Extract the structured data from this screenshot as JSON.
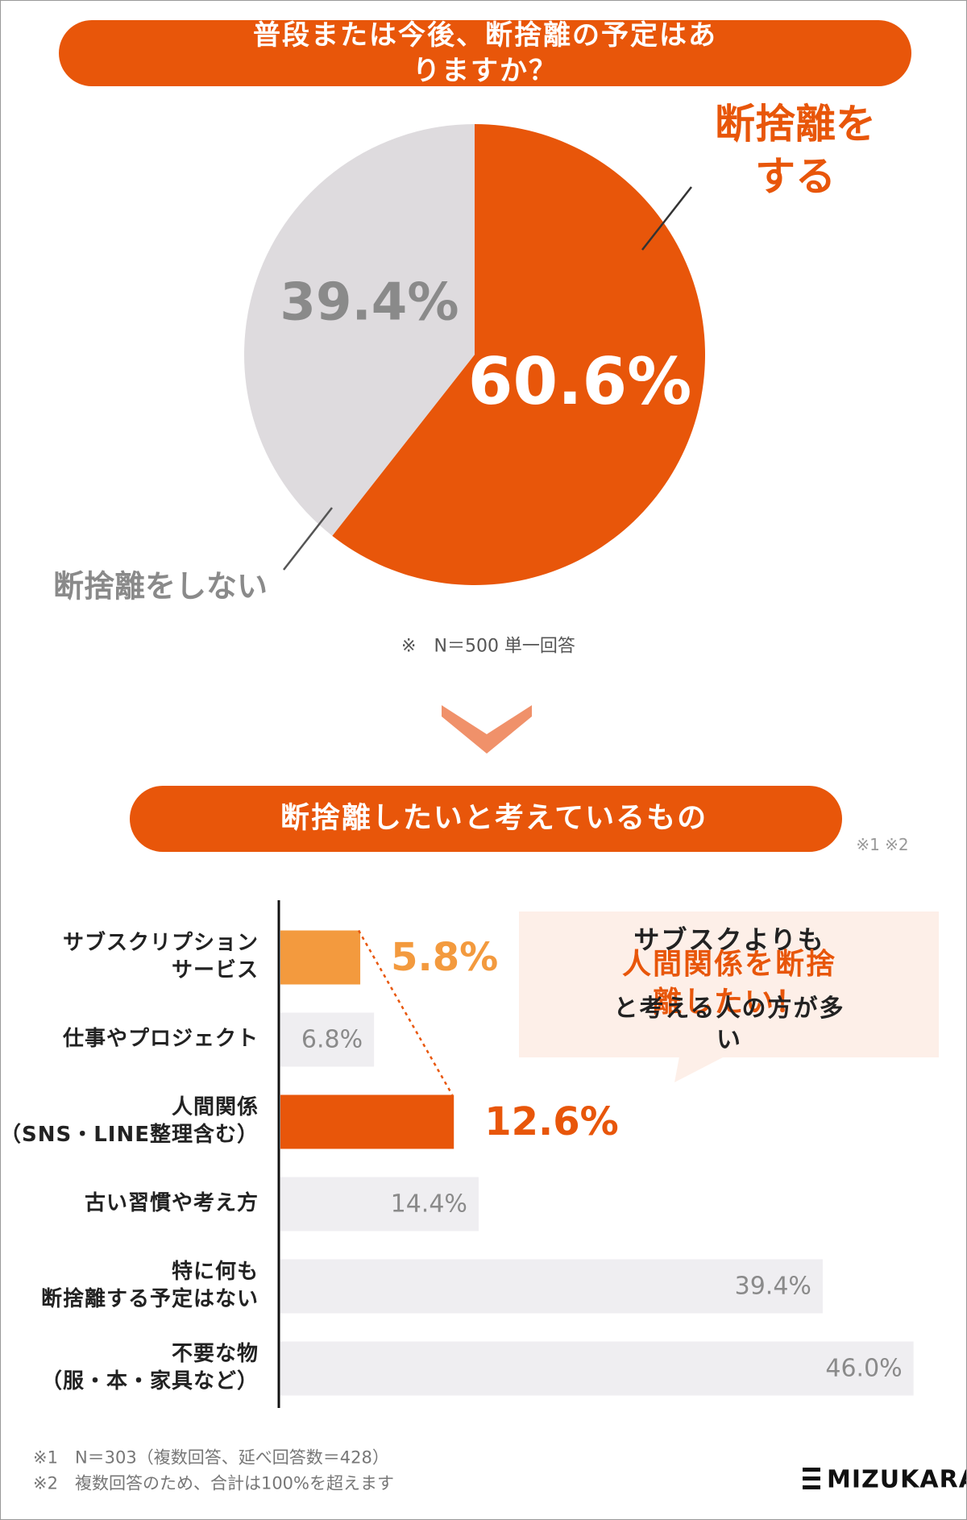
{
  "chart_data": [
    {
      "type": "pie",
      "title": "普段または今後、断捨離の予定はありますか？",
      "categories": [
        "断捨離をする",
        "断捨離をしない"
      ],
      "values": [
        60.6,
        39.4
      ],
      "value_labels": [
        "60.6%",
        "39.4%"
      ],
      "colors": [
        "#e8560a",
        "#dedbde"
      ],
      "label_colors": [
        "#ffffff",
        "#8a8a8a"
      ],
      "note": "※　N＝500 単一回答"
    },
    {
      "type": "bar",
      "orientation": "horizontal",
      "title": "断捨離したいと考えているもの",
      "title_note": "※1 ※2",
      "categories": [
        "サブスクリプション\nサービス",
        "仕事やプロジェクト",
        "人間関係\n（SNS・LINE整理含む）",
        "古い習慣や考え方",
        "特に何も\n断捨離する予定はない",
        "不要な物\n（服・本・家具など）"
      ],
      "values": [
        5.8,
        6.8,
        12.6,
        14.4,
        39.4,
        46.0
      ],
      "value_labels": [
        "5.8%",
        "6.8%",
        "12.6%",
        "14.4%",
        "39.4%",
        "46.0%"
      ],
      "colors": [
        "#f39a3e",
        "#efeef1",
        "#e8560a",
        "#efeef1",
        "#efeef1",
        "#efeef1"
      ],
      "label_colors": [
        "#f39a3e",
        "#8a8a8a",
        "#e8560a",
        "#8a8a8a",
        "#8a8a8a",
        "#8a8a8a"
      ],
      "callout": [
        "サブスクよりも",
        "人間関係を断捨離したい！",
        "と考える人の方が多い"
      ]
    }
  ],
  "footnotes": [
    "※1　N＝303（複数回答、延べ回答数＝428）",
    "※2　複数回答のため、合計は100%を超えます"
  ],
  "brand": "MIZUKARA"
}
